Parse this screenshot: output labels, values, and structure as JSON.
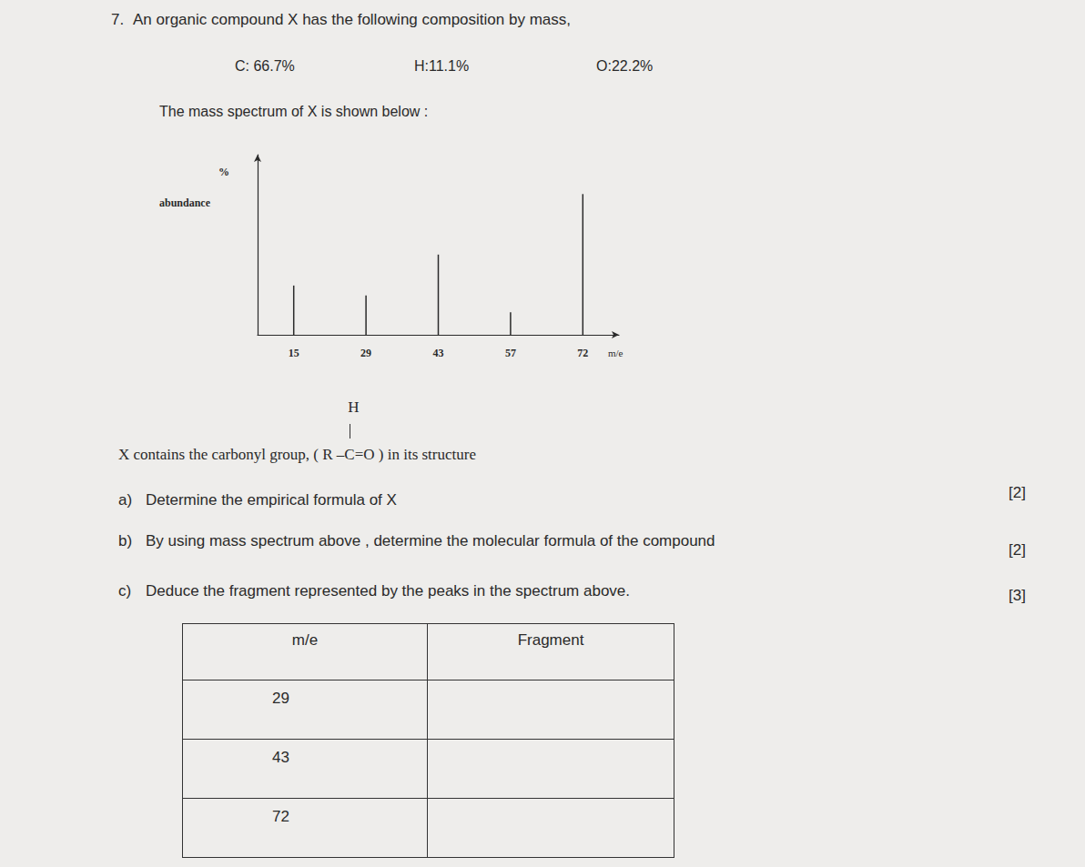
{
  "question": {
    "number": "7.",
    "text": "An organic compound X has the following composition by mass,"
  },
  "composition": [
    "C: 66.7%",
    "H:11.1%",
    "O:22.2%"
  ],
  "spectrum_intro": "The mass spectrum of X is shown below :",
  "chart_data": {
    "type": "bar",
    "ylabel": [
      "%",
      "abundance"
    ],
    "xlabel": "m/e",
    "categories": [
      15,
      29,
      43,
      57,
      72
    ],
    "values": [
      35,
      28,
      57,
      16,
      100
    ],
    "color": "#2a2a2a",
    "ylim": [
      0,
      128
    ],
    "yticks": [],
    "grid": false,
    "tick_labels": "x"
  },
  "structure": {
    "prefix": "X contains the carbonyl group, (",
    "formula_parts": [
      "R –",
      "C",
      "=O"
    ],
    "substituent": "H",
    "suffix": ") in its structure"
  },
  "parts": [
    {
      "label": "a)",
      "text": "Determine the empirical formula of X",
      "marks": "[2]"
    },
    {
      "label": "b)",
      "text": "By using mass spectrum above , determine the molecular formula of the compound",
      "marks": "[2]"
    },
    {
      "label": "c)",
      "text": "Deduce the fragment represented by the peaks in the spectrum above.",
      "marks": "[3]"
    }
  ],
  "table": {
    "header": [
      "m/e",
      "Fragment"
    ],
    "rows": [
      [
        29
      ],
      [
        43
      ],
      [
        72
      ]
    ]
  }
}
